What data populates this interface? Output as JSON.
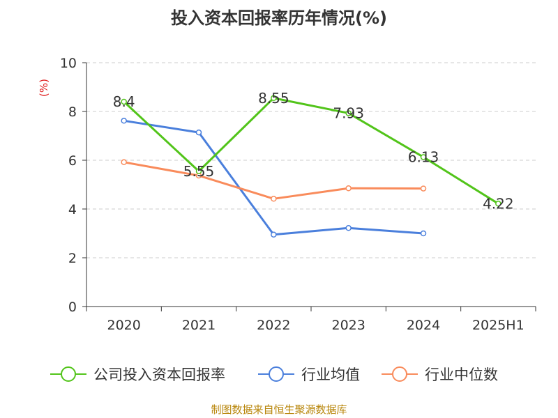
{
  "chart_data": {
    "type": "line",
    "title": "投入资本回报率历年情况(%)",
    "ylabel": "(%)",
    "xlabel": "",
    "ylim": [
      0,
      10
    ],
    "yticks": [
      0,
      2,
      4,
      6,
      8,
      10
    ],
    "categories": [
      "2020",
      "2021",
      "2022",
      "2023",
      "2024",
      "2025H1"
    ],
    "grid": true,
    "legend_position": "bottom",
    "series": [
      {
        "name": "公司投入资本回报率",
        "color": "#52c41a",
        "values": [
          8.4,
          5.55,
          8.55,
          7.93,
          6.13,
          4.22
        ],
        "labels": [
          "8.4",
          "5.55",
          "8.55",
          "7.93",
          "6.13",
          "4.22"
        ]
      },
      {
        "name": "行业均值",
        "color": "#4a7fdc",
        "values": [
          7.62,
          7.14,
          2.95,
          3.22,
          3.0,
          null
        ]
      },
      {
        "name": "行业中位数",
        "color": "#f98b5b",
        "values": [
          5.92,
          5.37,
          4.42,
          4.85,
          4.84,
          null
        ]
      }
    ]
  },
  "footer": "制图数据来自恒生聚源数据库",
  "colors": {
    "ylabel": "#e02020",
    "axis": "#333333",
    "grid": "#cccccc",
    "footer": "#b8860b"
  }
}
